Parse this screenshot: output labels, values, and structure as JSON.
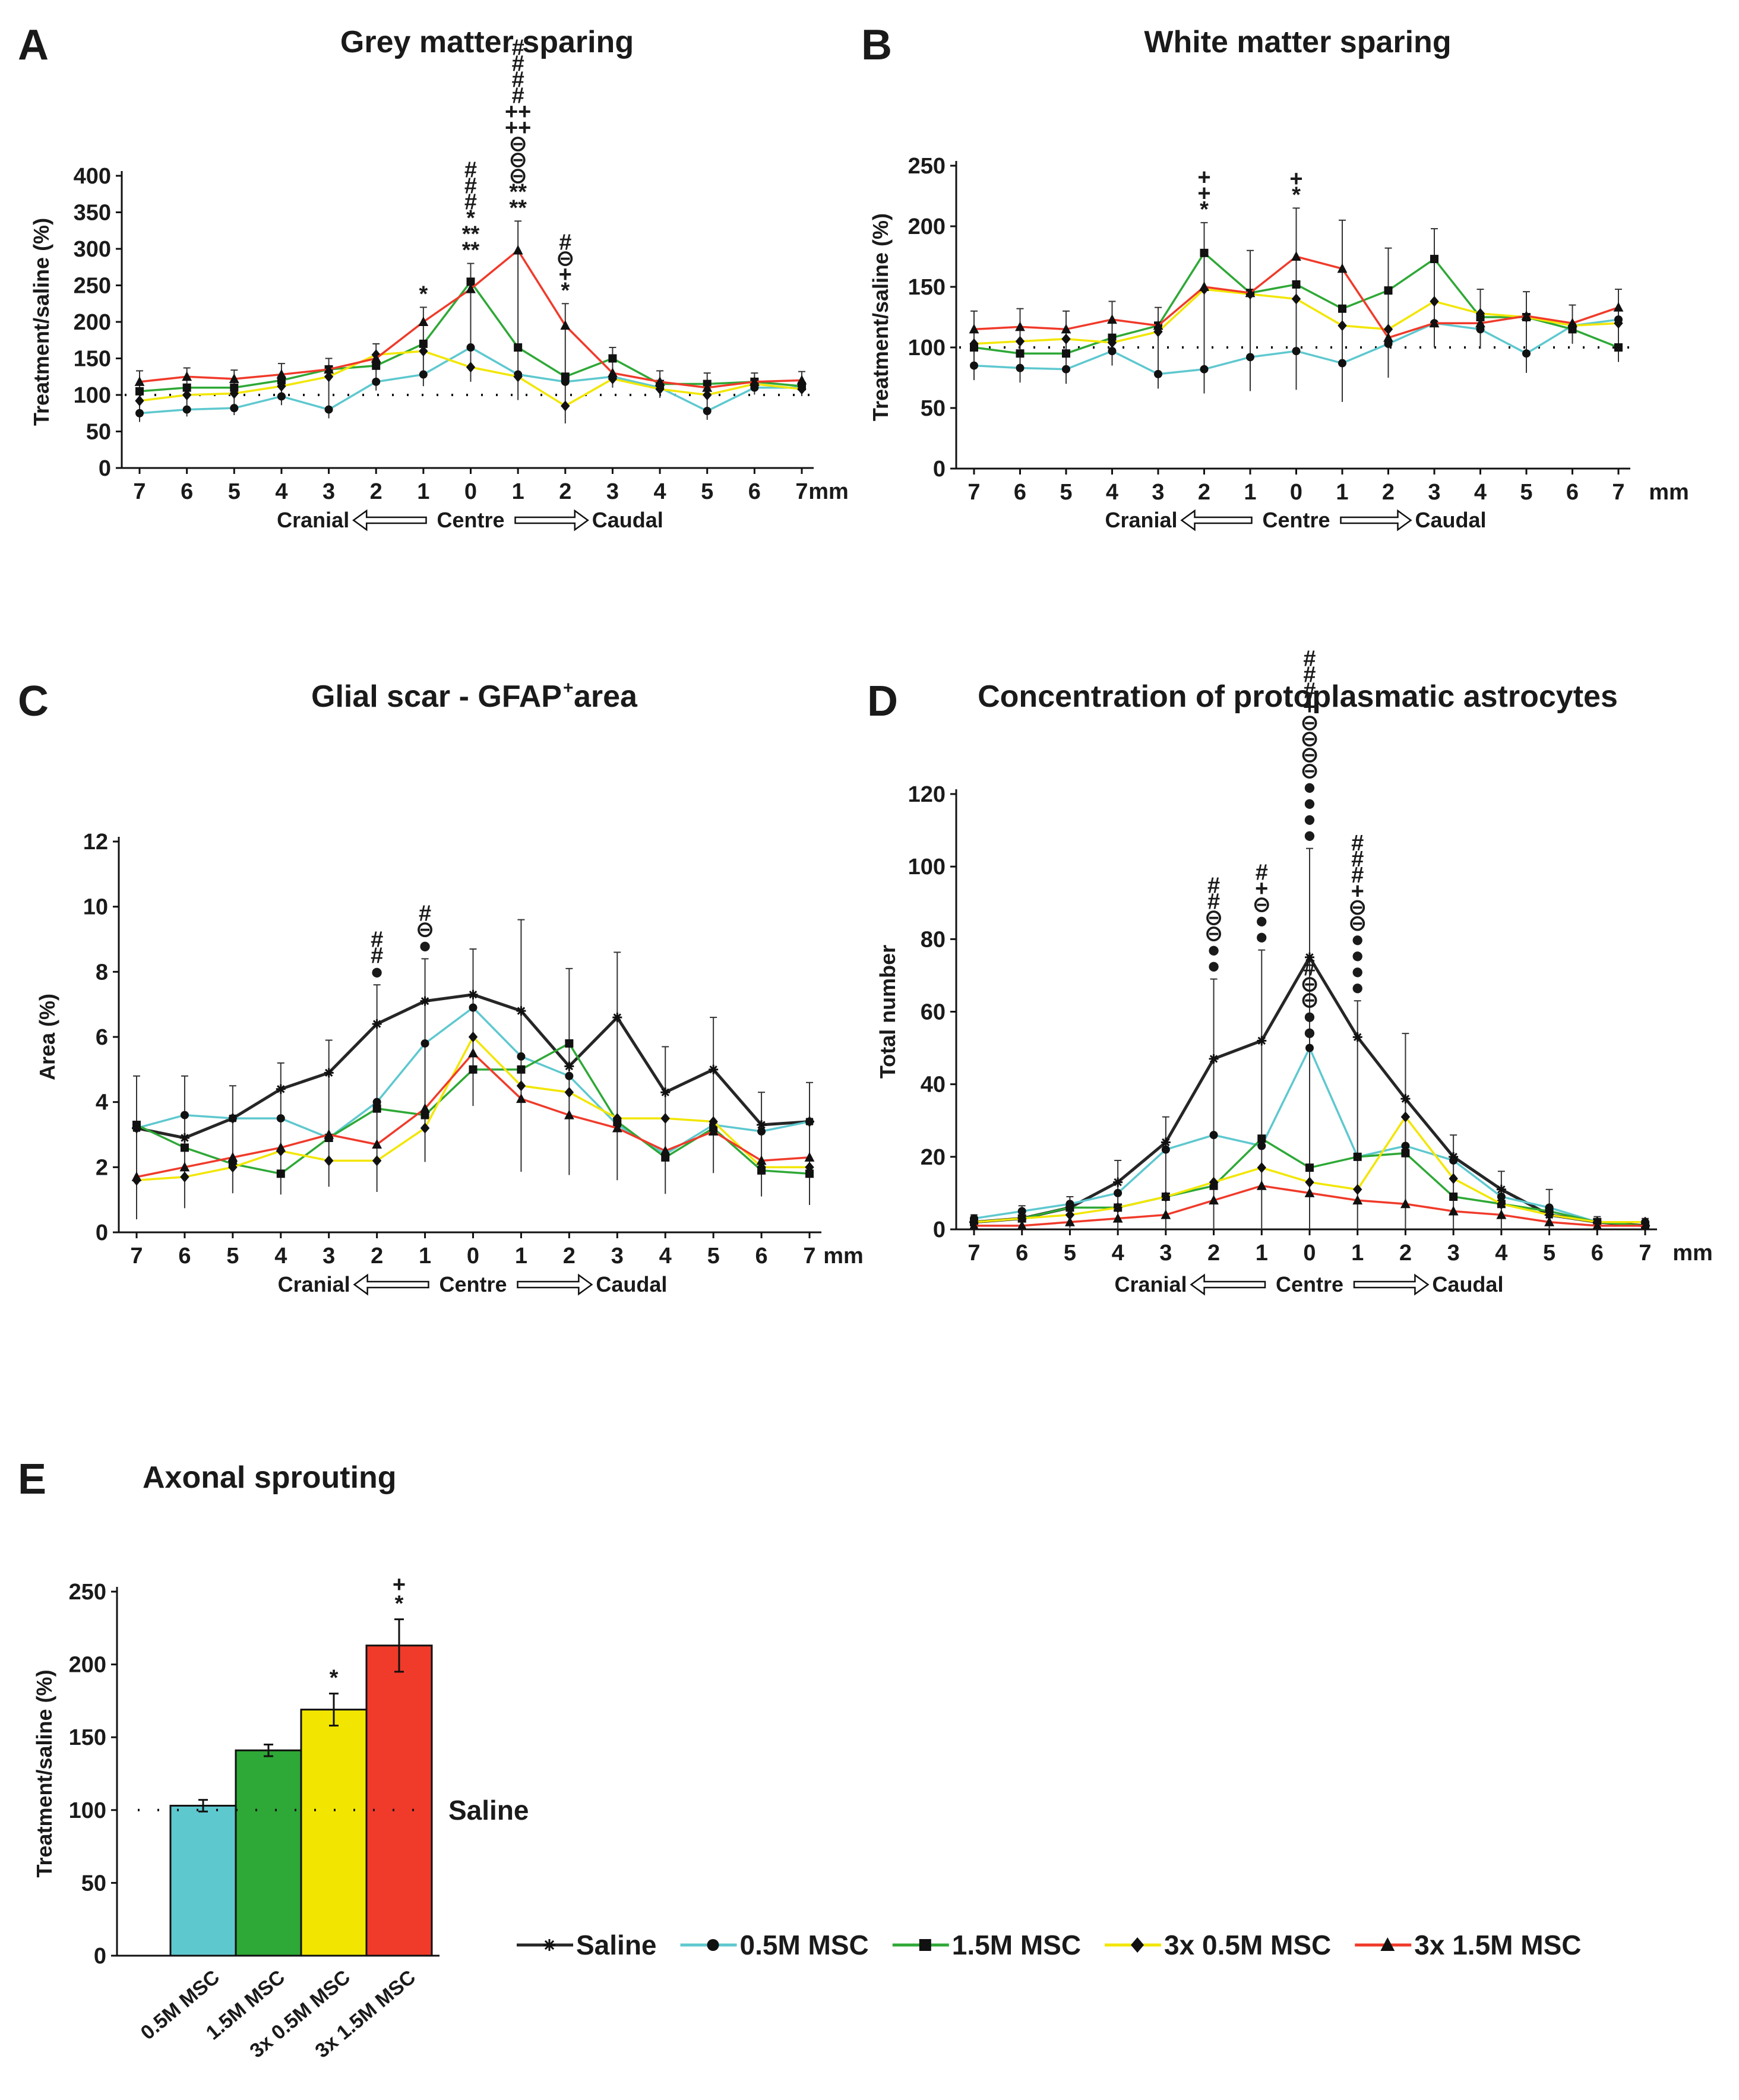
{
  "colors": {
    "saline": "#262626",
    "0.5M MSC": "#5ec8cf",
    "1.5M MSC": "#2ea836",
    "3x 0.5M MSC": "#f2e600",
    "3x 1.5M MSC": "#f03a2a"
  },
  "legend": [
    {
      "label": "Saline",
      "key": "saline",
      "marker": "star"
    },
    {
      "label": "0.5M MSC",
      "key": "0.5M MSC",
      "marker": "circle"
    },
    {
      "label": "1.5M MSC",
      "key": "1.5M MSC",
      "marker": "square"
    },
    {
      "label": "3x 0.5M MSC",
      "key": "3x 0.5M MSC",
      "marker": "diamond"
    },
    {
      "label": "3x 1.5M MSC",
      "key": "3x 1.5M MSC",
      "marker": "triangle"
    }
  ],
  "direction": {
    "cranial": "Cranial",
    "centre": "Centre",
    "caudal": "Caudal"
  },
  "unit": "mm",
  "saline_label": "Saline",
  "chart_data": [
    {
      "id": "A",
      "letter": "A",
      "title": "Grey matter sparing",
      "type": "line",
      "ylabel": "Treatment/saline (%)",
      "ylim": [
        0,
        400
      ],
      "yticks": [
        0,
        50,
        100,
        150,
        200,
        250,
        300,
        350,
        400
      ],
      "categories": [
        "7",
        "6",
        "5",
        "4",
        "3",
        "2",
        "1",
        "0",
        "1",
        "2",
        "3",
        "4",
        "5",
        "6",
        "7"
      ],
      "reference_line": 100,
      "series": [
        {
          "name": "0.5M MSC",
          "values": [
            75,
            80,
            82,
            98,
            80,
            118,
            128,
            165,
            128,
            118,
            125,
            110,
            78,
            110,
            110
          ]
        },
        {
          "name": "1.5M MSC",
          "values": [
            105,
            110,
            110,
            120,
            135,
            140,
            170,
            255,
            165,
            125,
            150,
            115,
            115,
            118,
            112
          ]
        },
        {
          "name": "3x 0.5M MSC",
          "values": [
            92,
            100,
            102,
            112,
            125,
            155,
            160,
            138,
            125,
            85,
            122,
            108,
            100,
            115,
            108
          ]
        },
        {
          "name": "3x 1.5M MSC",
          "values": [
            118,
            125,
            122,
            128,
            135,
            150,
            200,
            245,
            298,
            195,
            130,
            118,
            110,
            118,
            120
          ]
        }
      ],
      "errors": [
        15,
        12,
        12,
        15,
        15,
        15,
        20,
        25,
        40,
        30,
        15,
        15,
        15,
        12,
        12
      ],
      "annotations": [
        {
          "index": 6,
          "lines": [
            "*"
          ]
        },
        {
          "index": 7,
          "lines": [
            "#",
            "#",
            "#",
            "*",
            "**",
            "**"
          ]
        },
        {
          "index": 8,
          "lines": [
            "#",
            "#",
            "#",
            "#",
            "++",
            "++",
            "⊖",
            "⊖",
            "⊖",
            "**",
            "**"
          ]
        },
        {
          "index": 9,
          "lines": [
            "#",
            "⊖",
            "+",
            "*"
          ]
        }
      ]
    },
    {
      "id": "B",
      "letter": "B",
      "title": "White matter sparing",
      "type": "line",
      "ylabel": "Treatment/saline (%)",
      "ylim": [
        0,
        250
      ],
      "yticks": [
        0,
        50,
        100,
        150,
        200,
        250
      ],
      "categories": [
        "7",
        "6",
        "5",
        "4",
        "3",
        "2",
        "1",
        "0",
        "1",
        "2",
        "3",
        "4",
        "5",
        "6",
        "7"
      ],
      "reference_line": 100,
      "series": [
        {
          "name": "0.5M MSC",
          "values": [
            85,
            83,
            82,
            97,
            78,
            82,
            92,
            97,
            87,
            103,
            120,
            115,
            95,
            118,
            123
          ]
        },
        {
          "name": "1.5M MSC",
          "values": [
            100,
            95,
            95,
            108,
            118,
            178,
            145,
            152,
            132,
            147,
            173,
            125,
            125,
            115,
            100
          ]
        },
        {
          "name": "3x 0.5M MSC",
          "values": [
            103,
            105,
            107,
            104,
            113,
            148,
            144,
            140,
            118,
            115,
            138,
            128,
            125,
            118,
            120
          ]
        },
        {
          "name": "3x 1.5M MSC",
          "values": [
            115,
            117,
            115,
            123,
            118,
            150,
            145,
            175,
            165,
            108,
            120,
            120,
            126,
            120,
            133
          ]
        }
      ],
      "errors": [
        15,
        15,
        15,
        15,
        15,
        25,
        35,
        40,
        40,
        35,
        25,
        20,
        20,
        15,
        15
      ],
      "annotations": [
        {
          "index": 5,
          "lines": [
            "+",
            "+",
            "*"
          ]
        },
        {
          "index": 7,
          "lines": [
            "+",
            "*"
          ]
        }
      ]
    },
    {
      "id": "C",
      "letter": "C",
      "title": "Glial scar - GFAP",
      "title_sup": "+",
      "title_suffix": " area",
      "type": "line",
      "ylabel": "Area (%)",
      "ylim": [
        0,
        12
      ],
      "yticks": [
        0,
        2,
        4,
        6,
        8,
        10,
        12
      ],
      "categories": [
        "7",
        "6",
        "5",
        "4",
        "3",
        "2",
        "1",
        "0",
        "1",
        "2",
        "3",
        "4",
        "5",
        "6",
        "7"
      ],
      "series": [
        {
          "name": "Saline",
          "values": [
            3.2,
            2.9,
            3.5,
            4.4,
            4.9,
            6.4,
            7.1,
            7.3,
            6.8,
            5.1,
            6.6,
            4.3,
            5.0,
            3.3,
            3.4
          ]
        },
        {
          "name": "0.5M MSC",
          "values": [
            3.2,
            3.6,
            3.5,
            3.5,
            2.9,
            4.0,
            5.8,
            6.9,
            5.4,
            4.8,
            3.3,
            2.4,
            3.3,
            3.1,
            3.4
          ]
        },
        {
          "name": "1.5M MSC",
          "values": [
            3.3,
            2.6,
            2.1,
            1.8,
            2.9,
            3.8,
            3.6,
            5.0,
            5.0,
            5.8,
            3.4,
            2.3,
            3.2,
            1.9,
            1.8
          ]
        },
        {
          "name": "3x 0.5M MSC",
          "values": [
            1.6,
            1.7,
            2.0,
            2.5,
            2.2,
            2.2,
            3.2,
            6.0,
            4.5,
            4.3,
            3.5,
            3.5,
            3.4,
            2.0,
            2.0
          ]
        },
        {
          "name": "3x 1.5M MSC",
          "values": [
            1.7,
            2.0,
            2.3,
            2.6,
            3.0,
            2.7,
            3.8,
            5.5,
            4.1,
            3.6,
            3.2,
            2.5,
            3.1,
            2.2,
            2.3
          ]
        }
      ],
      "errors": [
        1.5,
        1.2,
        1.0,
        0.8,
        1.0,
        1.2,
        1.3,
        1.4,
        2.8,
        2.3,
        2.0,
        1.4,
        1.6,
        1.0,
        1.2
      ],
      "annotations": [
        {
          "index": 5,
          "lines": [
            "#",
            "#",
            "●"
          ]
        },
        {
          "index": 6,
          "lines": [
            "#",
            "⊖",
            "●"
          ]
        }
      ]
    },
    {
      "id": "D",
      "letter": "D",
      "title": "Concentration of protoplasmatic astrocytes",
      "type": "line",
      "ylabel": "Total number",
      "ylim": [
        0,
        120
      ],
      "yticks": [
        0,
        20,
        40,
        60,
        80,
        100,
        120
      ],
      "categories": [
        "7",
        "6",
        "5",
        "4",
        "3",
        "2",
        "1",
        "0",
        "1",
        "2",
        "3",
        "4",
        "5",
        "6",
        "7"
      ],
      "series": [
        {
          "name": "Saline",
          "values": [
            2,
            3,
            6,
            13,
            24,
            47,
            52,
            75,
            53,
            36,
            20,
            11,
            4,
            2,
            1
          ]
        },
        {
          "name": "0.5M MSC",
          "values": [
            3,
            5,
            7,
            10,
            22,
            26,
            23,
            50,
            20,
            23,
            19,
            9,
            6,
            2,
            2
          ]
        },
        {
          "name": "1.5M MSC",
          "values": [
            2,
            3,
            6,
            6,
            9,
            12,
            25,
            17,
            20,
            21,
            9,
            7,
            5,
            2,
            1
          ]
        },
        {
          "name": "3x 0.5M MSC",
          "values": [
            2,
            3,
            4,
            6,
            9,
            13,
            17,
            13,
            11,
            31,
            14,
            7,
            4,
            2,
            2
          ]
        },
        {
          "name": "3x 1.5M MSC",
          "values": [
            1,
            1,
            2,
            3,
            4,
            8,
            12,
            10,
            8,
            7,
            5,
            4,
            2,
            1,
            1
          ]
        }
      ],
      "errors": [
        1,
        1.5,
        2,
        6,
        7,
        22,
        25,
        30,
        10,
        18,
        6,
        5,
        5,
        1.5,
        1
      ],
      "annotations": [
        {
          "index": 5,
          "lines": [
            "#",
            "#",
            "⊖",
            "⊖",
            "●",
            "●"
          ]
        },
        {
          "index": 6,
          "lines": [
            "#",
            "+",
            "⊖",
            "●",
            "●"
          ]
        },
        {
          "index": 7,
          "lines": [
            "#",
            "#",
            "#",
            "+",
            "⊖",
            "⊖",
            "⊖",
            "⊖",
            "●",
            "●",
            "●",
            "●"
          ]
        },
        {
          "index": 7,
          "at_value": 50,
          "lines": [
            "#",
            "⊖",
            "⊖",
            "●",
            "●"
          ]
        },
        {
          "index": 8,
          "lines": [
            "#",
            "#",
            "#",
            "+",
            "⊖",
            "⊖",
            "●",
            "●",
            "●",
            "●"
          ]
        }
      ]
    },
    {
      "id": "E",
      "letter": "E",
      "title": "Axonal sprouting",
      "type": "bar",
      "ylabel": "Treatment/saline (%)",
      "ylim": [
        0,
        250
      ],
      "yticks": [
        0,
        50,
        100,
        150,
        200,
        250
      ],
      "categories": [
        "0.5M MSC",
        "1.5M MSC",
        "3x 0.5M MSC",
        "3x 1.5M MSC"
      ],
      "values": [
        103,
        141,
        169,
        213
      ],
      "errors": [
        4,
        4,
        11,
        18
      ],
      "reference_line": 100,
      "annotations": [
        {
          "index": 2,
          "lines": [
            "*"
          ]
        },
        {
          "index": 3,
          "lines": [
            "+",
            "*"
          ]
        }
      ]
    }
  ]
}
